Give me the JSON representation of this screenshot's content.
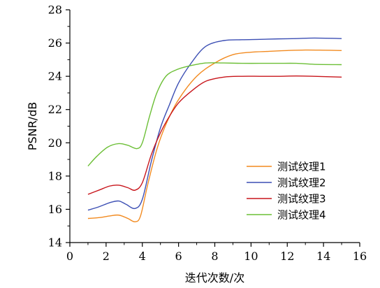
{
  "chart_data": {
    "type": "line",
    "title": "",
    "xlabel": "迭代次数/次",
    "ylabel": "PSNR/dB",
    "xlim": [
      0,
      16
    ],
    "ylim": [
      14,
      28
    ],
    "xticks": [
      "0",
      "2",
      "4",
      "6",
      "8",
      "10",
      "12",
      "14",
      "16"
    ],
    "yticks": [
      "14",
      "16",
      "18",
      "20",
      "22",
      "24",
      "26",
      "28"
    ],
    "grid": false,
    "legend_position": "bottom-right",
    "series": [
      {
        "name": "测试纹理1",
        "color": "#f28a1f",
        "points": [
          [
            1,
            15.45
          ],
          [
            1.6,
            15.5
          ],
          [
            2.2,
            15.6
          ],
          [
            2.7,
            15.65
          ],
          [
            3.2,
            15.45
          ],
          [
            3.6,
            15.25
          ],
          [
            3.9,
            15.6
          ],
          [
            4.3,
            17.5
          ],
          [
            4.8,
            19.6
          ],
          [
            5.3,
            21.1
          ],
          [
            6.0,
            22.6
          ],
          [
            7.0,
            24.0
          ],
          [
            8.0,
            24.8
          ],
          [
            9.0,
            25.3
          ],
          [
            10.0,
            25.45
          ],
          [
            11.0,
            25.5
          ],
          [
            12.0,
            25.55
          ],
          [
            13.0,
            25.58
          ],
          [
            14.0,
            25.57
          ],
          [
            15.0,
            25.55
          ]
        ]
      },
      {
        "name": "测试纹理2",
        "color": "#3c4fb4",
        "points": [
          [
            1,
            15.95
          ],
          [
            1.6,
            16.15
          ],
          [
            2.2,
            16.4
          ],
          [
            2.7,
            16.5
          ],
          [
            3.1,
            16.3
          ],
          [
            3.6,
            16.05
          ],
          [
            4.0,
            16.6
          ],
          [
            4.5,
            18.9
          ],
          [
            5.0,
            20.9
          ],
          [
            5.5,
            22.3
          ],
          [
            6.0,
            23.6
          ],
          [
            6.7,
            24.8
          ],
          [
            7.5,
            25.8
          ],
          [
            8.5,
            26.15
          ],
          [
            9.5,
            26.2
          ],
          [
            10.5,
            26.22
          ],
          [
            11.5,
            26.25
          ],
          [
            12.5,
            26.27
          ],
          [
            13.5,
            26.3
          ],
          [
            15.0,
            26.27
          ]
        ]
      },
      {
        "name": "测试纹理3",
        "color": "#c8151b",
        "points": [
          [
            1,
            16.9
          ],
          [
            1.6,
            17.15
          ],
          [
            2.2,
            17.4
          ],
          [
            2.7,
            17.45
          ],
          [
            3.2,
            17.3
          ],
          [
            3.6,
            17.15
          ],
          [
            4.0,
            17.6
          ],
          [
            4.5,
            19.3
          ],
          [
            5.0,
            20.6
          ],
          [
            5.5,
            21.6
          ],
          [
            6.0,
            22.4
          ],
          [
            6.7,
            23.1
          ],
          [
            7.5,
            23.7
          ],
          [
            8.5,
            23.95
          ],
          [
            9.5,
            24.0
          ],
          [
            10.5,
            24.0
          ],
          [
            11.5,
            24.0
          ],
          [
            12.5,
            24.02
          ],
          [
            13.5,
            24.0
          ],
          [
            15.0,
            23.95
          ]
        ]
      },
      {
        "name": "测试纹理4",
        "color": "#6cbf36",
        "points": [
          [
            1,
            18.6
          ],
          [
            1.5,
            19.2
          ],
          [
            2.1,
            19.75
          ],
          [
            2.7,
            19.95
          ],
          [
            3.2,
            19.85
          ],
          [
            3.7,
            19.65
          ],
          [
            4.0,
            20.0
          ],
          [
            4.4,
            21.6
          ],
          [
            4.8,
            23.0
          ],
          [
            5.3,
            24.0
          ],
          [
            5.9,
            24.4
          ],
          [
            6.5,
            24.6
          ],
          [
            7.5,
            24.8
          ],
          [
            8.5,
            24.8
          ],
          [
            9.5,
            24.78
          ],
          [
            10.5,
            24.78
          ],
          [
            11.5,
            24.78
          ],
          [
            12.5,
            24.78
          ],
          [
            13.5,
            24.72
          ],
          [
            15.0,
            24.7
          ]
        ]
      }
    ]
  }
}
